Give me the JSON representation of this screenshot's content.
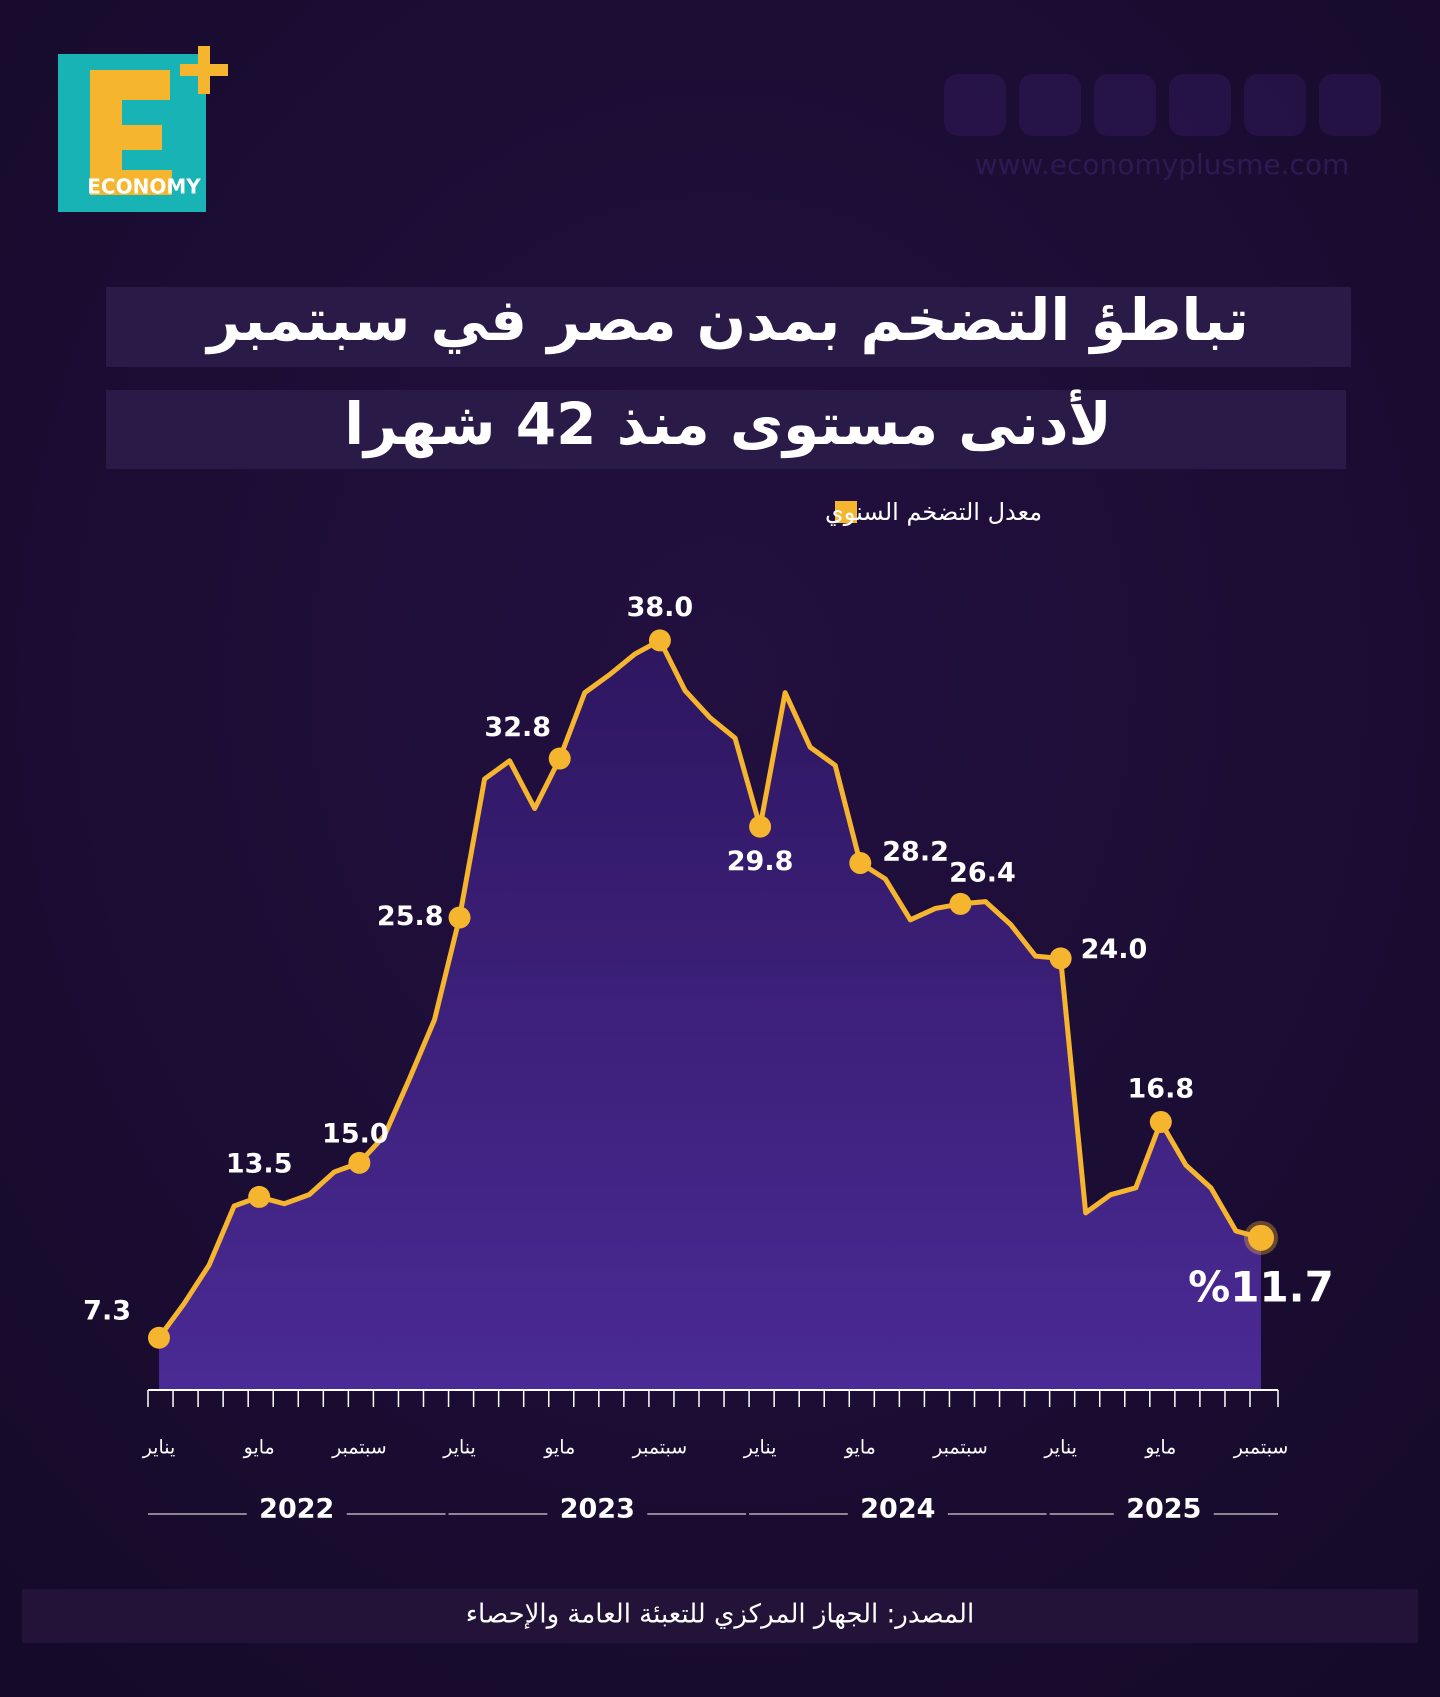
{
  "logo": "ECONOMY",
  "website": "www.economyplusme.com",
  "source": "المصدر: الجهاز المركزي للتعبئة العامة والإحصاء",
  "chart_data": {
    "type": "line",
    "title": [
      "تباطؤ التضخم بمدن مصر في سبتمبر",
      "لأدنى مستوى منذ 42 شهرا"
    ],
    "categories": [
      "يناير",
      null,
      null,
      null,
      "مايو",
      null,
      null,
      null,
      "سبتمبر",
      null,
      null,
      null,
      "يناير",
      null,
      null,
      null,
      "مايو",
      null,
      null,
      null,
      "سبتمبر",
      null,
      null,
      null,
      "يناير",
      null,
      null,
      null,
      "مايو",
      null,
      null,
      null,
      "سبتمبر",
      null,
      null,
      null,
      "يناير",
      null,
      null,
      null,
      "مايو",
      null,
      null,
      null,
      "سبتمبر"
    ],
    "years": [
      "2022",
      "2023",
      "2024",
      "2025"
    ],
    "series": [
      {
        "name": "معدل التضخم السنوي",
        "color": "#f5b52e",
        "values": [
          7.3,
          8.8,
          10.5,
          13.1,
          13.5,
          13.2,
          13.6,
          14.6,
          15.0,
          16.2,
          18.7,
          21.3,
          25.8,
          31.9,
          32.7,
          30.6,
          32.8,
          35.7,
          36.5,
          37.4,
          38.0,
          35.8,
          34.6,
          33.7,
          29.8,
          35.7,
          33.3,
          32.5,
          28.2,
          27.5,
          25.7,
          26.2,
          26.4,
          26.5,
          25.5,
          24.1,
          24.0,
          12.8,
          13.6,
          13.9,
          16.8,
          14.9,
          13.9,
          12.0,
          11.7
        ],
        "value_labels": [
          "7.3",
          null,
          null,
          null,
          "13.5",
          null,
          null,
          null,
          "15.0",
          null,
          null,
          null,
          "25.8",
          null,
          null,
          null,
          "32.8",
          null,
          null,
          null,
          "38.0",
          null,
          null,
          null,
          "29.8",
          null,
          null,
          null,
          "28.2",
          null,
          null,
          null,
          "26.4",
          null,
          null,
          null,
          "24.0",
          null,
          null,
          null,
          "16.8",
          null,
          null,
          null,
          "%11.7"
        ]
      }
    ],
    "ylim": [
      5,
      40
    ]
  }
}
